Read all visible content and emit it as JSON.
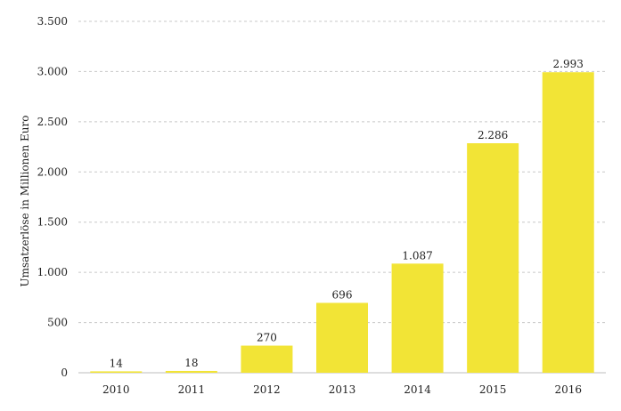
{
  "chart_data": {
    "type": "bar",
    "categories": [
      "2010",
      "2011",
      "2012",
      "2013",
      "2014",
      "2015",
      "2016"
    ],
    "values": [
      14,
      18,
      270,
      696,
      1087,
      2286,
      2993
    ],
    "value_labels": [
      "14",
      "18",
      "270",
      "696",
      "1.087",
      "2.286",
      "2.993"
    ],
    "ylabel": "Umsatzerlöse in  Millionen Euro",
    "ylim": [
      0,
      3500
    ],
    "yticks": [
      0,
      500,
      1000,
      1500,
      2000,
      2500,
      3000,
      3500
    ],
    "ytick_labels": [
      "0",
      "500",
      "1.000",
      "1.500",
      "2.000",
      "2.500",
      "3.000",
      "3.500"
    ],
    "grid": true,
    "bar_color": "#f2e436"
  }
}
